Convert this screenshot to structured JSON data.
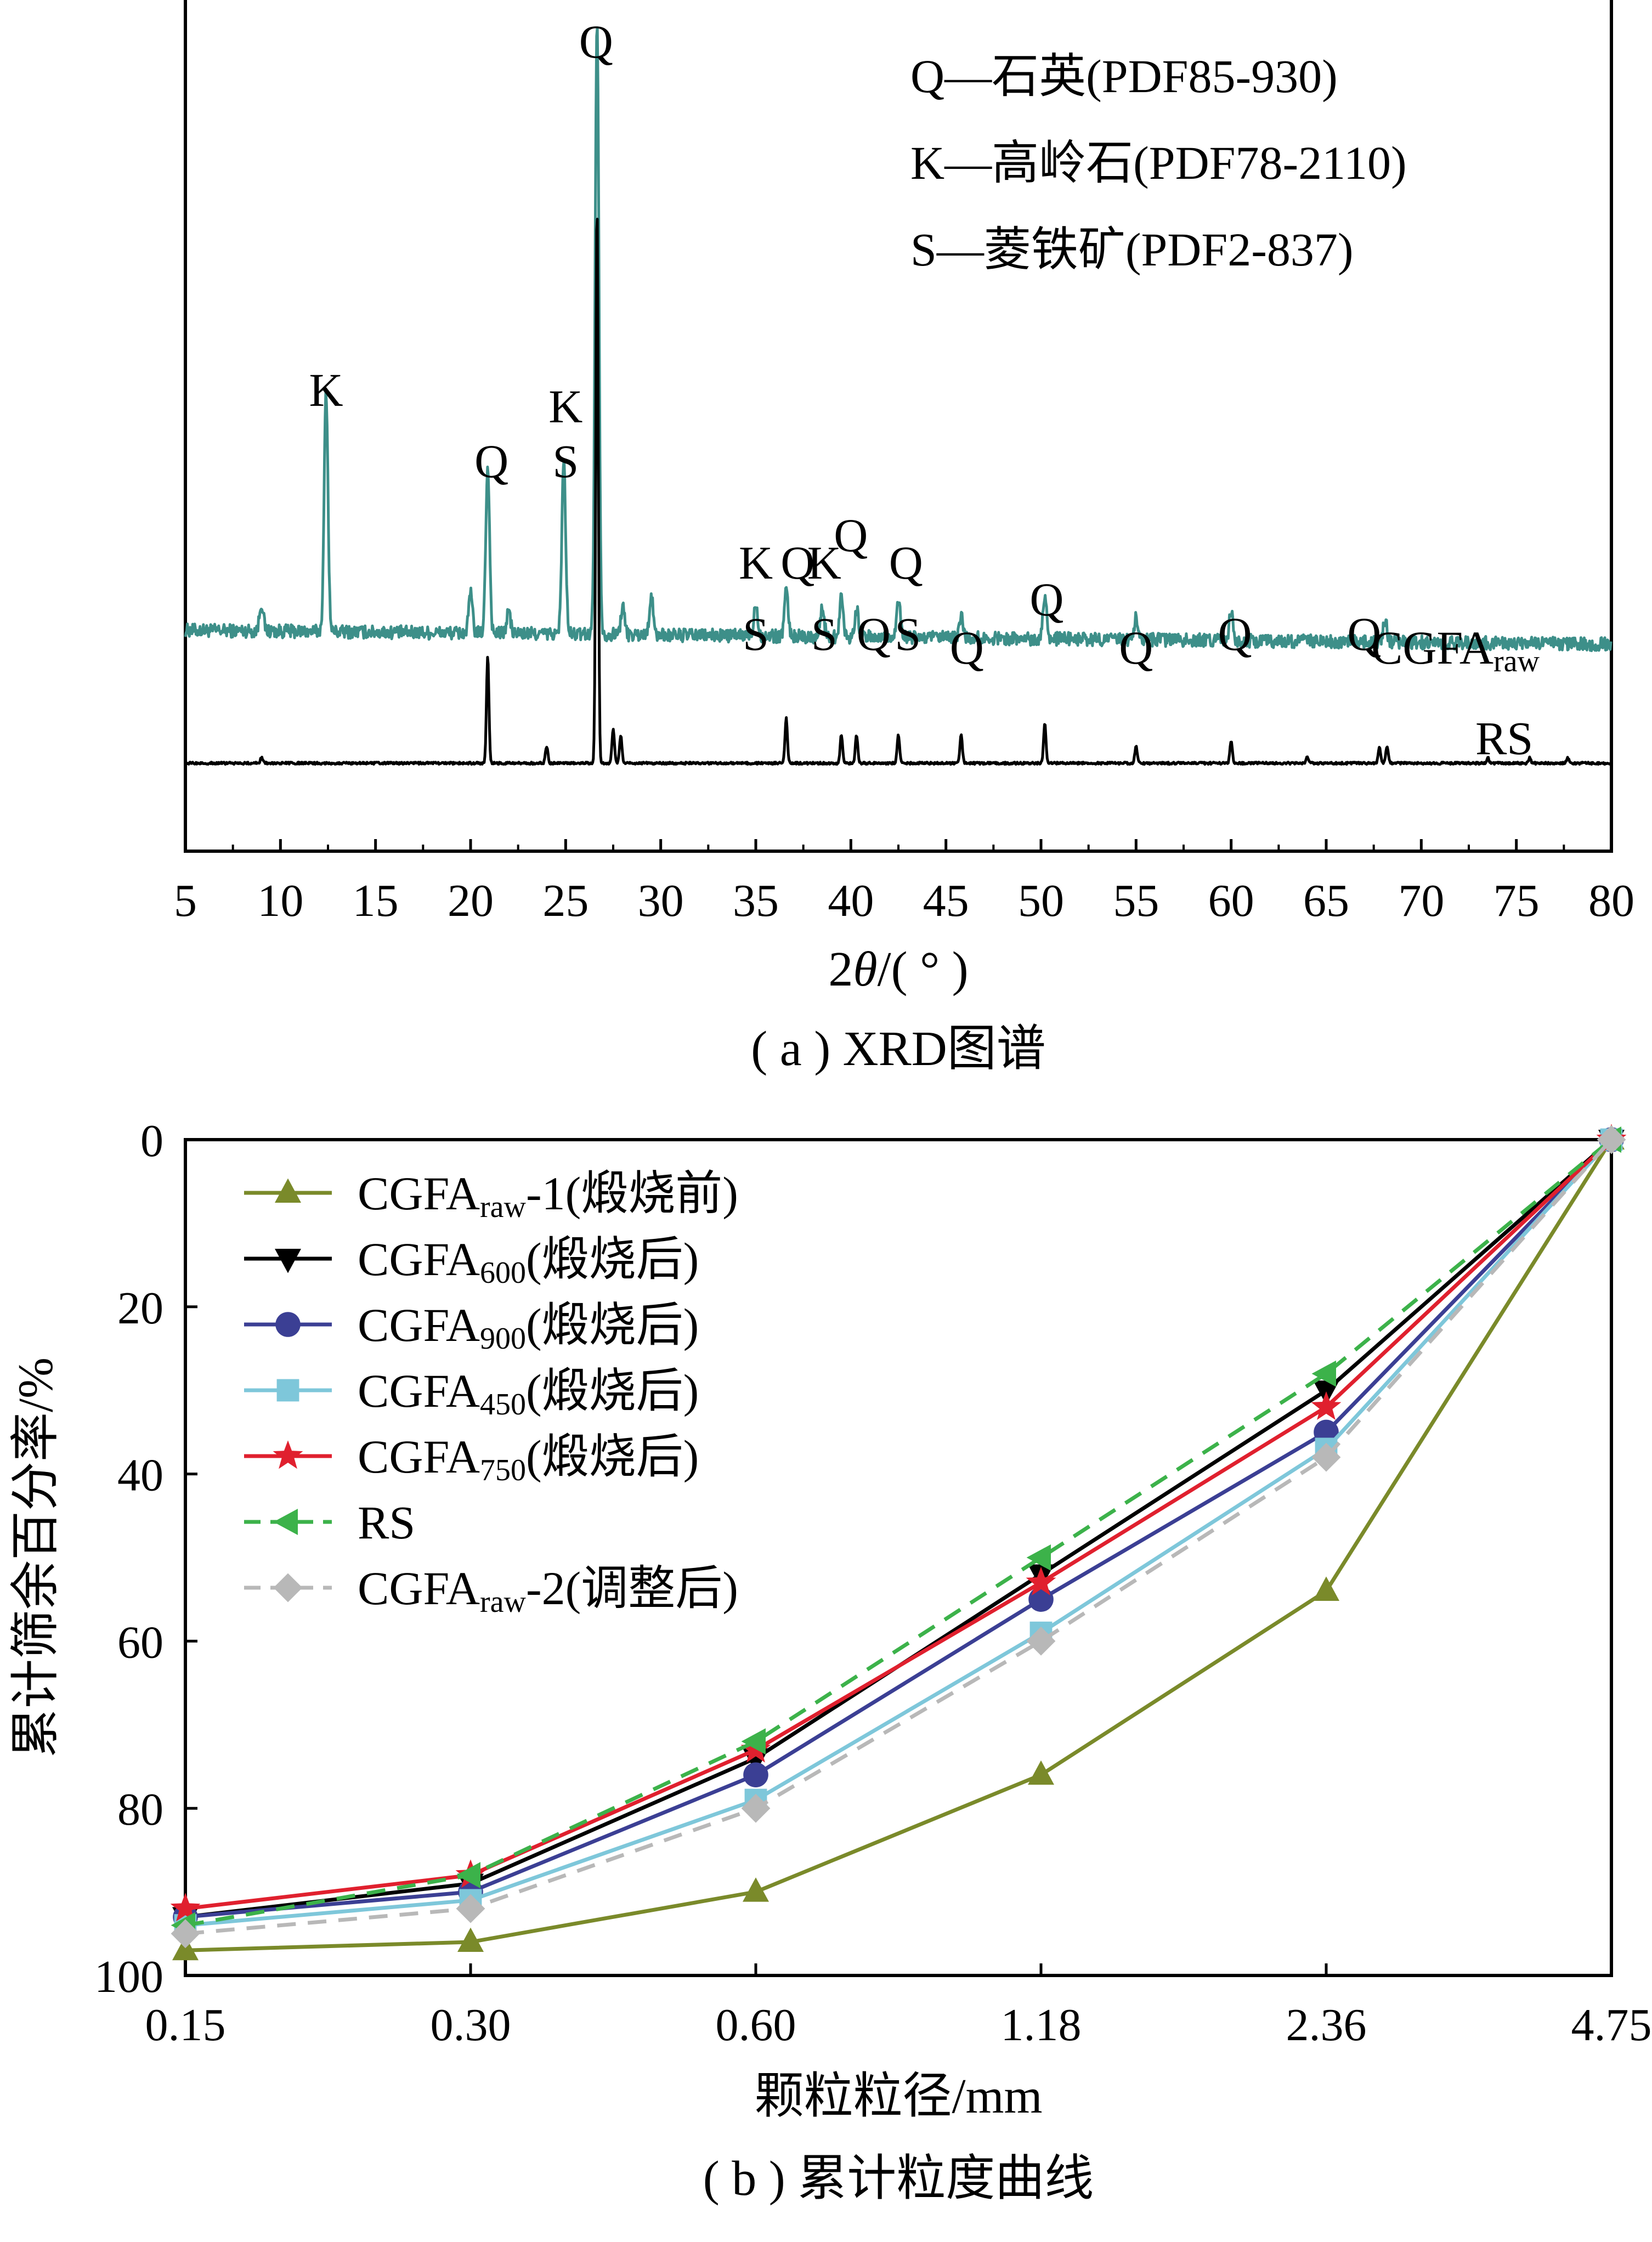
{
  "chart_data": [
    {
      "type": "line",
      "panel": "a",
      "caption": "( a ) XRD图谱",
      "xlabel_prefix": "2",
      "xlabel_theta": "θ",
      "xlabel_suffix": "/( ° )",
      "ylabel": "",
      "xlim": [
        5,
        80
      ],
      "x_ticks": [
        "5",
        "10",
        "15",
        "20",
        "25",
        "30",
        "35",
        "40",
        "45",
        "50",
        "55",
        "60",
        "65",
        "70",
        "75",
        "80"
      ],
      "legend_lines": [
        "Q—石英(PDF85-930)",
        "K—高岭石(PDF78-2110)",
        "S—菱铁矿(PDF2-837)"
      ],
      "series": [
        {
          "name_main": "CGFA",
          "name_sub": "raw",
          "color": "#3d8f89",
          "baseline": 0.14,
          "noise": 0.012,
          "peaks": [
            [
              9.0,
              0.05
            ],
            [
              12.4,
              0.43
            ],
            [
              20.0,
              0.07
            ],
            [
              20.9,
              0.3
            ],
            [
              22.0,
              0.04
            ],
            [
              24.9,
              0.31
            ],
            [
              26.65,
              1.1
            ],
            [
              28.0,
              0.05
            ],
            [
              29.5,
              0.07
            ],
            [
              35.0,
              0.06
            ],
            [
              36.6,
              0.08
            ],
            [
              38.5,
              0.05
            ],
            [
              39.5,
              0.07
            ],
            [
              40.3,
              0.05
            ],
            [
              42.5,
              0.07
            ],
            [
              45.8,
              0.04
            ],
            [
              50.2,
              0.08
            ],
            [
              55.0,
              0.04
            ],
            [
              60.0,
              0.05
            ],
            [
              68.1,
              0.04
            ]
          ]
        },
        {
          "name_main": "RS",
          "name_sub": "",
          "color": "#000000",
          "baseline": 0.02,
          "noise": 0.002,
          "peaks": [
            [
              9.0,
              0.01
            ],
            [
              20.9,
              0.19
            ],
            [
              24.0,
              0.03
            ],
            [
              26.65,
              1.0
            ],
            [
              27.5,
              0.06
            ],
            [
              27.9,
              0.05
            ],
            [
              36.6,
              0.08
            ],
            [
              39.5,
              0.05
            ],
            [
              40.3,
              0.05
            ],
            [
              42.5,
              0.05
            ],
            [
              45.8,
              0.05
            ],
            [
              50.2,
              0.07
            ],
            [
              55.0,
              0.03
            ],
            [
              60.0,
              0.04
            ],
            [
              64.0,
              0.01
            ],
            [
              67.8,
              0.03
            ],
            [
              68.2,
              0.03
            ],
            [
              73.5,
              0.01
            ],
            [
              75.7,
              0.01
            ],
            [
              77.7,
              0.01
            ]
          ]
        }
      ],
      "peak_labels": [
        {
          "text": "Q",
          "x": 26.6,
          "row": 0
        },
        {
          "text": "K",
          "x": 12.4,
          "row": 1
        },
        {
          "text": "K",
          "x": 25.0,
          "row": 2
        },
        {
          "text": "Q",
          "x": 21.1,
          "row": 3
        },
        {
          "text": "S",
          "x": 25.0,
          "row": 3
        },
        {
          "text": "Q",
          "x": 40.0,
          "row": 4
        },
        {
          "text": "K",
          "x": 35.0,
          "row": 5
        },
        {
          "text": "Q",
          "x": 37.2,
          "row": 5
        },
        {
          "text": "K",
          "x": 38.6,
          "row": 5
        },
        {
          "text": "Q",
          "x": 42.9,
          "row": 5
        },
        {
          "text": "Q",
          "x": 50.3,
          "row": 6
        },
        {
          "text": "S",
          "x": 35.0,
          "row": 7
        },
        {
          "text": "S",
          "x": 38.6,
          "row": 7
        },
        {
          "text": "Q",
          "x": 41.2,
          "row": 7
        },
        {
          "text": "S",
          "x": 43.0,
          "row": 7
        },
        {
          "text": "Q",
          "x": 60.2,
          "row": 7
        },
        {
          "text": "Q",
          "x": 67.0,
          "row": 7
        },
        {
          "text": "Q",
          "x": 46.1,
          "row": 8
        },
        {
          "text": "Q",
          "x": 55.0,
          "row": 8
        }
      ]
    },
    {
      "type": "line",
      "panel": "b",
      "caption": "( b ) 累计粒度曲线",
      "xlabel": "颗粒粒径/mm",
      "ylabel": "累计筛余百分率/%",
      "categories": [
        "0.15",
        "0.30",
        "0.60",
        "1.18",
        "2.36",
        "4.75"
      ],
      "ylim": [
        0,
        100
      ],
      "y_inverted": true,
      "y_ticks": [
        "0",
        "20",
        "40",
        "60",
        "80",
        "100"
      ],
      "legend_position": "top-left",
      "series": [
        {
          "name_main": "CGFA",
          "name_sub": "raw",
          "name_suffix": "-1(煅烧前)",
          "color": "#7a8a2a",
          "marker": "triangle-up",
          "dash": false,
          "values": [
            97,
            96,
            90,
            76,
            54,
            0
          ]
        },
        {
          "name_main": "CGFA",
          "name_sub": "600",
          "name_suffix": "(煅烧后)",
          "color": "#000000",
          "marker": "triangle-down",
          "dash": false,
          "values": [
            93,
            89,
            74,
            52,
            30,
            0
          ]
        },
        {
          "name_main": "CGFA",
          "name_sub": "900",
          "name_suffix": "(煅烧后)",
          "color": "#3b3f94",
          "marker": "circle",
          "dash": false,
          "values": [
            93,
            90,
            76,
            55,
            35,
            0
          ]
        },
        {
          "name_main": "CGFA",
          "name_sub": "450",
          "name_suffix": "(煅烧后)",
          "color": "#7ec7da",
          "marker": "square",
          "dash": false,
          "values": [
            94,
            91,
            79,
            59,
            37,
            0
          ]
        },
        {
          "name_main": "CGFA",
          "name_sub": "750",
          "name_suffix": "(煅烧后)",
          "color": "#e0202e",
          "marker": "star",
          "dash": false,
          "values": [
            92,
            88,
            73,
            53,
            32,
            0
          ]
        },
        {
          "name_main": "RS",
          "name_sub": "",
          "name_suffix": "",
          "color": "#3cb24a",
          "marker": "triangle-left",
          "dash": true,
          "values": [
            94,
            88,
            72,
            50,
            28,
            0
          ]
        },
        {
          "name_main": "CGFA",
          "name_sub": "raw",
          "name_suffix": "-2(调整后)",
          "color": "#b8b8b8",
          "marker": "diamond",
          "dash": true,
          "values": [
            95,
            92,
            80,
            60,
            38,
            0
          ]
        }
      ]
    }
  ]
}
